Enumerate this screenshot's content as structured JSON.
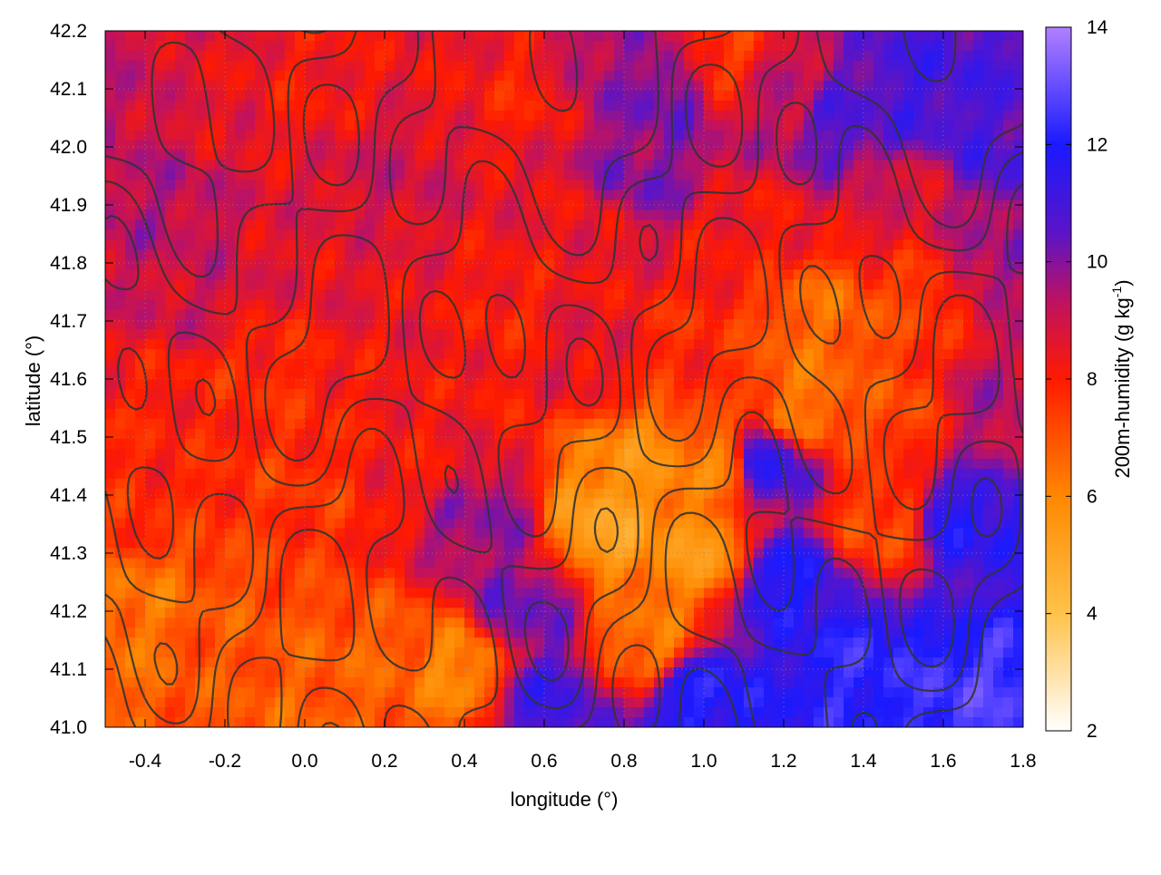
{
  "chart_data": {
    "type": "heatmap",
    "xlabel": "longitude (°)",
    "ylabel": "latitude (°)",
    "colorbar_label": "200m-humidity (g kg-1)",
    "colorbar_label_parts": {
      "base": "200m-humidity (g kg",
      "sup": "-1",
      "tail": ")"
    },
    "xlim": [
      -0.5,
      1.8
    ],
    "ylim": [
      41.0,
      42.2
    ],
    "zlim": [
      2,
      14
    ],
    "x_ticks": [
      {
        "value": -0.4,
        "label": "-0.4"
      },
      {
        "value": -0.2,
        "label": "-0.2"
      },
      {
        "value": 0.0,
        "label": "0.0"
      },
      {
        "value": 0.2,
        "label": "0.2"
      },
      {
        "value": 0.4,
        "label": "0.4"
      },
      {
        "value": 0.6,
        "label": "0.6"
      },
      {
        "value": 0.8,
        "label": "0.8"
      },
      {
        "value": 1.0,
        "label": "1.0"
      },
      {
        "value": 1.2,
        "label": "1.2"
      },
      {
        "value": 1.4,
        "label": "1.4"
      },
      {
        "value": 1.6,
        "label": "1.6"
      },
      {
        "value": 1.8,
        "label": "1.8"
      }
    ],
    "y_ticks": [
      {
        "value": 41.0,
        "label": "41.0"
      },
      {
        "value": 41.1,
        "label": "41.1"
      },
      {
        "value": 41.2,
        "label": "41.2"
      },
      {
        "value": 41.3,
        "label": "41.3"
      },
      {
        "value": 41.4,
        "label": "41.4"
      },
      {
        "value": 41.5,
        "label": "41.5"
      },
      {
        "value": 41.6,
        "label": "41.6"
      },
      {
        "value": 41.7,
        "label": "41.7"
      },
      {
        "value": 41.8,
        "label": "41.8"
      },
      {
        "value": 41.9,
        "label": "41.9"
      },
      {
        "value": 42.0,
        "label": "42.0"
      },
      {
        "value": 42.1,
        "label": "42.1"
      },
      {
        "value": 42.2,
        "label": "42.2"
      }
    ],
    "colorbar_ticks": [
      {
        "value": 2,
        "label": "2"
      },
      {
        "value": 4,
        "label": "4"
      },
      {
        "value": 6,
        "label": "6"
      },
      {
        "value": 8,
        "label": "8"
      },
      {
        "value": 10,
        "label": "10"
      },
      {
        "value": 12,
        "label": "12"
      },
      {
        "value": 14,
        "label": "14"
      }
    ],
    "colormap": [
      {
        "value": 2,
        "color": "#ffffff"
      },
      {
        "value": 4,
        "color": "#ffc24a"
      },
      {
        "value": 6,
        "color": "#ff8800"
      },
      {
        "value": 8,
        "color": "#ff1a00"
      },
      {
        "value": 9.3,
        "color": "#c0125e"
      },
      {
        "value": 10.5,
        "color": "#5a14c8"
      },
      {
        "value": 12,
        "color": "#1a1aff"
      },
      {
        "value": 14,
        "color": "#b080ff"
      }
    ],
    "grid": "dotted",
    "contour_color": "#333333",
    "coastline_note_visible": false,
    "field_anchors": [
      {
        "lon": -0.45,
        "lat": 42.1,
        "value": 9.2
      },
      {
        "lon": -0.4,
        "lat": 41.9,
        "value": 9.4
      },
      {
        "lon": -0.3,
        "lat": 41.75,
        "value": 9.0
      },
      {
        "lon": -0.25,
        "lat": 42.1,
        "value": 8.6
      },
      {
        "lon": 0.0,
        "lat": 42.1,
        "value": 8.2
      },
      {
        "lon": 0.2,
        "lat": 41.95,
        "value": 9.0
      },
      {
        "lon": 0.1,
        "lat": 41.8,
        "value": 8.6
      },
      {
        "lon": 0.35,
        "lat": 42.15,
        "value": 8.4
      },
      {
        "lon": 0.55,
        "lat": 42.1,
        "value": 8.0
      },
      {
        "lon": 0.75,
        "lat": 42.15,
        "value": 9.6
      },
      {
        "lon": 0.9,
        "lat": 42.1,
        "value": 10.2
      },
      {
        "lon": 0.85,
        "lat": 41.95,
        "value": 10.0
      },
      {
        "lon": 0.7,
        "lat": 41.85,
        "value": 8.4
      },
      {
        "lon": 1.05,
        "lat": 42.15,
        "value": 7.6
      },
      {
        "lon": 1.2,
        "lat": 42.1,
        "value": 9.2
      },
      {
        "lon": 1.35,
        "lat": 42.05,
        "value": 10.6
      },
      {
        "lon": 1.55,
        "lat": 42.1,
        "value": 11.0
      },
      {
        "lon": 1.75,
        "lat": 42.0,
        "value": 10.8
      },
      {
        "lon": 1.5,
        "lat": 41.9,
        "value": 8.8
      },
      {
        "lon": 1.1,
        "lat": 41.85,
        "value": 8.2
      },
      {
        "lon": 1.3,
        "lat": 41.7,
        "value": 6.6
      },
      {
        "lon": 1.55,
        "lat": 41.75,
        "value": 7.4
      },
      {
        "lon": 1.7,
        "lat": 41.8,
        "value": 9.6
      },
      {
        "lon": 1.7,
        "lat": 41.55,
        "value": 9.4
      },
      {
        "lon": 1.5,
        "lat": 41.55,
        "value": 7.2
      },
      {
        "lon": 1.25,
        "lat": 41.55,
        "value": 6.4
      },
      {
        "lon": 0.95,
        "lat": 41.65,
        "value": 7.8
      },
      {
        "lon": 0.7,
        "lat": 41.65,
        "value": 8.6
      },
      {
        "lon": 0.5,
        "lat": 41.7,
        "value": 8.0
      },
      {
        "lon": 0.3,
        "lat": 41.7,
        "value": 8.4
      },
      {
        "lon": -0.1,
        "lat": 41.6,
        "value": 7.8
      },
      {
        "lon": -0.35,
        "lat": 41.55,
        "value": 8.0
      },
      {
        "lon": 0.0,
        "lat": 41.4,
        "value": 7.6
      },
      {
        "lon": 0.25,
        "lat": 41.45,
        "value": 8.2
      },
      {
        "lon": 0.45,
        "lat": 41.35,
        "value": 9.8
      },
      {
        "lon": 0.55,
        "lat": 41.2,
        "value": 10.2
      },
      {
        "lon": 0.6,
        "lat": 41.05,
        "value": 11.0
      },
      {
        "lon": 0.75,
        "lat": 41.35,
        "value": 5.2
      },
      {
        "lon": 0.85,
        "lat": 41.45,
        "value": 5.8
      },
      {
        "lon": 1.0,
        "lat": 41.3,
        "value": 5.6
      },
      {
        "lon": 1.05,
        "lat": 41.45,
        "value": 6.2
      },
      {
        "lon": 0.85,
        "lat": 41.15,
        "value": 6.4
      },
      {
        "lon": 1.15,
        "lat": 41.45,
        "value": 11.4
      },
      {
        "lon": 1.2,
        "lat": 41.25,
        "value": 11.8
      },
      {
        "lon": 1.0,
        "lat": 41.05,
        "value": 12.0
      },
      {
        "lon": 1.4,
        "lat": 41.1,
        "value": 12.2
      },
      {
        "lon": 1.45,
        "lat": 41.35,
        "value": 7.2
      },
      {
        "lon": 1.65,
        "lat": 41.35,
        "value": 11.6
      },
      {
        "lon": 1.7,
        "lat": 41.05,
        "value": 12.6
      },
      {
        "lon": 0.4,
        "lat": 41.1,
        "value": 6.0
      },
      {
        "lon": 0.2,
        "lat": 41.1,
        "value": 6.8
      },
      {
        "lon": -0.2,
        "lat": 41.15,
        "value": 7.0
      },
      {
        "lon": -0.45,
        "lat": 41.2,
        "value": 6.4
      },
      {
        "lon": -0.45,
        "lat": 41.4,
        "value": 7.8
      },
      {
        "lon": 0.05,
        "lat": 41.05,
        "value": 6.8
      }
    ]
  }
}
